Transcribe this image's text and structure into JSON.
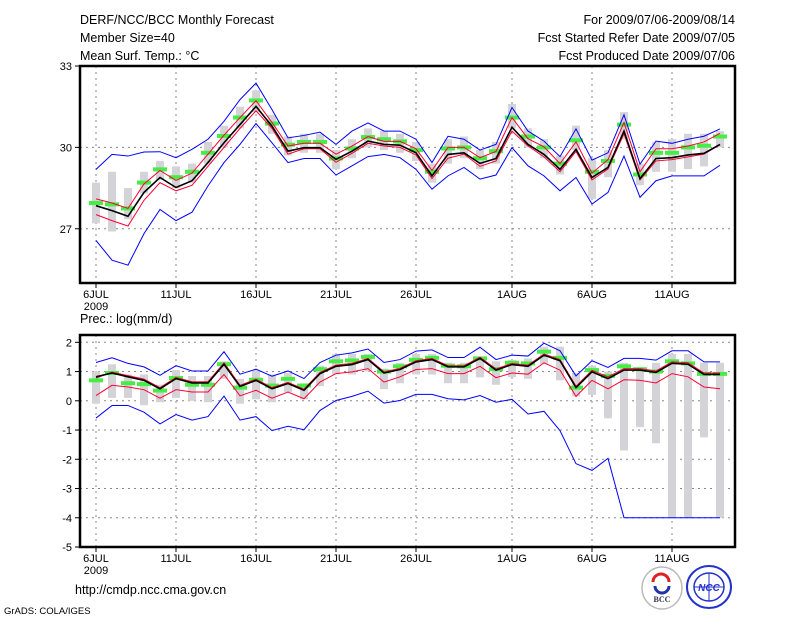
{
  "header": {
    "title": "DERF/NCC/BCC Monthly Forecast",
    "member_size": "Member Size=40",
    "variable": "Mean Surf. Temp.: °C",
    "period": "For 2009/07/06-2009/08/14",
    "started": "Fcst Started Refer Date 2009/07/05",
    "produced": "Fcst Produced Date 2009/07/06"
  },
  "footer": {
    "url": "http://cmdp.ncc.cma.gov.cn",
    "grads": "GrADS: COLA/IGES",
    "logo_bcc": "BCC",
    "logo_ncc": "NCC"
  },
  "colors": {
    "max_min": "#0000ff",
    "spread": "#ff0033",
    "mean": "#000000",
    "marker": "#44ee44",
    "bar": "#d4d4d8"
  },
  "chart_data": [
    {
      "type": "line",
      "title": "Mean Surf. Temp.: °C",
      "x_start": "2009-07-06",
      "n_days": 40,
      "x_tick_labels": [
        "6JUL",
        "11JUL",
        "16JUL",
        "21JUL",
        "26JUL",
        "1AUG",
        "6AUG",
        "11AUG"
      ],
      "x_tick_days": [
        0,
        5,
        10,
        15,
        20,
        26,
        31,
        36
      ],
      "year_label": "2009",
      "ylim": [
        25,
        33
      ],
      "y_ticks": [
        27,
        30,
        33
      ],
      "grid": true,
      "series": [
        {
          "name": "ensemble max",
          "color": "#0000ff",
          "values": [
            29.19,
            29.74,
            29.68,
            29.83,
            29.84,
            29.62,
            29.93,
            30.3,
            30.96,
            31.76,
            32.37,
            31.39,
            30.35,
            30.44,
            30.56,
            30.11,
            30.6,
            30.9,
            30.6,
            30.6,
            30.3,
            29.44,
            30.41,
            30.3,
            29.9,
            30.11,
            31.47,
            30.6,
            30.23,
            29.66,
            30.68,
            29.53,
            29.8,
            31.2,
            29.38,
            30.23,
            30.15,
            30.3,
            30.41,
            30.68
          ]
        },
        {
          "name": "ensemble min",
          "color": "#0000ff",
          "values": [
            26.57,
            25.84,
            25.66,
            26.82,
            27.71,
            27.3,
            27.61,
            28.58,
            29.44,
            30.11,
            30.88,
            30.17,
            29.44,
            29.59,
            29.59,
            28.98,
            29.32,
            29.66,
            29.74,
            29.62,
            29.19,
            28.46,
            28.95,
            29.26,
            28.83,
            28.98,
            29.99,
            29.32,
            28.95,
            28.4,
            28.89,
            27.91,
            28.34,
            29.68,
            28.16,
            28.77,
            28.95,
            28.95,
            28.95,
            29.34
          ]
        },
        {
          "name": "upper spread",
          "color": "#ff0033",
          "values": [
            28.1,
            27.95,
            27.75,
            28.65,
            29.15,
            28.78,
            29.05,
            29.75,
            30.45,
            31.1,
            31.72,
            30.92,
            30.05,
            30.15,
            30.15,
            29.75,
            30.05,
            30.4,
            30.22,
            30.22,
            29.95,
            29.15,
            30.0,
            30.0,
            29.62,
            29.85,
            31.1,
            30.32,
            30.02,
            29.4,
            30.2,
            29.05,
            29.55,
            30.92,
            29.1,
            29.95,
            29.95,
            30.05,
            30.2,
            30.52
          ]
        },
        {
          "name": "lower spread",
          "color": "#ff0033",
          "values": [
            27.52,
            27.3,
            27.1,
            28.05,
            28.7,
            28.4,
            28.6,
            29.3,
            30.0,
            30.7,
            31.35,
            30.7,
            29.75,
            29.95,
            29.95,
            29.45,
            29.78,
            30.15,
            30.05,
            30.0,
            29.72,
            28.85,
            29.6,
            29.75,
            29.3,
            29.5,
            30.6,
            30.05,
            29.65,
            29.1,
            29.85,
            28.8,
            29.2,
            30.5,
            28.8,
            29.5,
            29.55,
            29.65,
            29.75,
            30.1
          ]
        },
        {
          "name": "ensemble mean",
          "color": "#000000",
          "values": [
            27.85,
            27.67,
            27.46,
            28.34,
            28.89,
            28.52,
            28.77,
            29.44,
            30.17,
            30.84,
            31.51,
            30.78,
            29.86,
            29.99,
            29.99,
            29.56,
            29.86,
            30.23,
            30.11,
            30.08,
            29.8,
            28.95,
            29.74,
            29.8,
            29.41,
            29.59,
            30.74,
            30.11,
            29.74,
            29.19,
            29.93,
            28.89,
            29.26,
            30.6,
            28.85,
            29.59,
            29.62,
            29.72,
            29.78,
            30.11
          ]
        }
      ],
      "markers": [
        27.95,
        27.9,
        27.75,
        28.7,
        29.19,
        28.9,
        29.1,
        29.8,
        30.42,
        31.1,
        31.73,
        30.88,
        30.1,
        30.2,
        30.2,
        29.59,
        29.96,
        30.38,
        30.3,
        30.22,
        29.9,
        29.1,
        29.96,
        30.0,
        29.6,
        29.86,
        31.1,
        30.4,
        30.0,
        29.4,
        30.26,
        29.1,
        29.5,
        30.84,
        29.0,
        29.8,
        29.8,
        30.0,
        30.06,
        30.4
      ],
      "bars_low": [
        27.2,
        26.9,
        27.35,
        28.3,
        28.8,
        28.5,
        28.7,
        29.4,
        30.0,
        30.7,
        31.3,
        30.5,
        29.7,
        29.8,
        29.8,
        29.2,
        29.6,
        30.0,
        29.9,
        29.8,
        29.5,
        28.7,
        29.4,
        29.6,
        29.2,
        29.4,
        30.7,
        30.0,
        29.6,
        29.0,
        29.9,
        28.1,
        28.9,
        30.3,
        28.6,
        29.1,
        29.1,
        29.2,
        29.3,
        30.0
      ],
      "bars_high": [
        28.7,
        29.1,
        28.5,
        29.1,
        29.5,
        29.3,
        29.4,
        30.2,
        30.8,
        31.5,
        32.1,
        31.2,
        30.4,
        30.5,
        30.5,
        29.9,
        30.3,
        30.7,
        30.6,
        30.5,
        30.2,
        29.4,
        30.3,
        30.4,
        29.9,
        30.2,
        31.6,
        30.7,
        30.3,
        29.7,
        30.8,
        29.6,
        29.9,
        31.3,
        29.4,
        30.2,
        30.3,
        30.5,
        30.5,
        30.6
      ]
    },
    {
      "type": "line",
      "title": "Prec.: log(mm/d)",
      "x_start": "2009-07-06",
      "n_days": 40,
      "x_tick_labels": [
        "6JUL",
        "11JUL",
        "16JUL",
        "21JUL",
        "26JUL",
        "1AUG",
        "6AUG",
        "11AUG"
      ],
      "x_tick_days": [
        0,
        5,
        10,
        15,
        20,
        26,
        31,
        36
      ],
      "year_label": "2009",
      "ylim": [
        -5,
        2.25
      ],
      "y_ticks": [
        -5,
        -4,
        -3,
        -2,
        -1,
        0,
        1,
        2
      ],
      "grid": true,
      "series": [
        {
          "name": "ensemble max",
          "color": "#0000ff",
          "values": [
            1.31,
            1.47,
            1.28,
            1.16,
            0.87,
            1.2,
            1.02,
            1.02,
            1.68,
            0.91,
            1.08,
            0.84,
            1.02,
            0.76,
            1.31,
            1.56,
            1.64,
            1.77,
            1.31,
            1.41,
            1.7,
            1.74,
            1.48,
            1.48,
            1.83,
            1.41,
            1.56,
            1.53,
            1.97,
            1.71,
            0.85,
            1.37,
            1.14,
            1.45,
            1.45,
            1.39,
            1.71,
            1.71,
            1.33,
            1.33
          ]
        },
        {
          "name": "ensemble min",
          "color": "#0000ff",
          "values": [
            -0.59,
            -0.16,
            -0.16,
            -0.39,
            -0.79,
            -0.47,
            -0.66,
            -0.54,
            0.16,
            -0.66,
            -0.54,
            -1.02,
            -0.87,
            -0.99,
            -0.33,
            0.01,
            0.15,
            0.33,
            -0.08,
            0.01,
            0.22,
            0.22,
            0.07,
            0.03,
            0.18,
            -0.05,
            0.05,
            -0.45,
            -0.36,
            -1.02,
            -2.15,
            -2.38,
            -1.97,
            -4.0,
            -4.0,
            -4.0,
            -4.0,
            -4.0,
            -4.0,
            -4.0
          ]
        },
        {
          "name": "upper spread",
          "color": "#ff0033",
          "values": [
            0.78,
            0.98,
            0.86,
            0.74,
            0.45,
            0.8,
            0.65,
            0.65,
            1.3,
            0.53,
            0.74,
            0.45,
            0.63,
            0.4,
            0.97,
            1.22,
            1.28,
            1.45,
            0.99,
            1.11,
            1.37,
            1.45,
            1.2,
            1.2,
            1.49,
            1.09,
            1.28,
            1.22,
            1.6,
            1.41,
            0.5,
            1.04,
            0.82,
            1.1,
            1.1,
            1.02,
            1.33,
            1.3,
            0.95,
            0.95
          ]
        },
        {
          "name": "lower spread",
          "color": "#ff0033",
          "values": [
            0.18,
            0.53,
            0.47,
            0.38,
            0.09,
            0.38,
            0.3,
            0.3,
            0.9,
            0.17,
            0.36,
            0.09,
            0.3,
            0.07,
            0.64,
            0.93,
            0.99,
            1.1,
            0.64,
            0.82,
            1.07,
            1.1,
            0.93,
            0.93,
            1.18,
            0.79,
            0.95,
            0.91,
            1.3,
            1.05,
            0.15,
            0.7,
            0.41,
            0.72,
            0.7,
            0.61,
            0.93,
            0.82,
            0.47,
            0.41
          ]
        },
        {
          "name": "ensemble mean",
          "color": "#000000",
          "values": [
            0.82,
            0.95,
            0.82,
            0.7,
            0.41,
            0.76,
            0.61,
            0.61,
            1.25,
            0.49,
            0.7,
            0.41,
            0.59,
            0.36,
            0.93,
            1.18,
            1.24,
            1.41,
            0.95,
            1.07,
            1.33,
            1.41,
            1.16,
            1.16,
            1.45,
            1.05,
            1.24,
            1.18,
            1.56,
            1.37,
            0.45,
            0.99,
            0.76,
            1.05,
            1.05,
            0.97,
            1.28,
            1.25,
            0.9,
            0.9
          ]
        }
      ],
      "markers": [
        0.7,
        0.95,
        0.6,
        0.57,
        0.35,
        0.78,
        0.55,
        0.55,
        1.25,
        0.45,
        0.72,
        0.52,
        0.75,
        0.52,
        1.08,
        1.35,
        1.38,
        1.5,
        1.0,
        1.18,
        1.4,
        1.47,
        1.2,
        1.18,
        1.45,
        1.08,
        1.3,
        1.28,
        1.68,
        1.47,
        0.45,
        1.05,
        0.85,
        1.18,
        1.08,
        1.0,
        1.35,
        1.28,
        0.92,
        0.92
      ],
      "bars_low": [
        -0.1,
        0.1,
        0.1,
        -0.15,
        -0.05,
        0.1,
        0.0,
        -0.05,
        0.75,
        -0.1,
        0.05,
        -0.05,
        0.3,
        0.05,
        0.5,
        0.9,
        0.9,
        1.0,
        0.4,
        0.6,
        0.9,
        0.9,
        0.6,
        0.6,
        0.8,
        0.55,
        0.8,
        0.75,
        1.25,
        0.7,
        0.15,
        0.2,
        -0.6,
        -1.7,
        -0.9,
        -1.45,
        -4.0,
        -4.0,
        -1.25,
        -4.0
      ],
      "bars_high": [
        1.0,
        1.25,
        0.9,
        0.9,
        0.55,
        1.05,
        0.85,
        0.85,
        1.35,
        0.75,
        1.05,
        0.9,
        0.95,
        0.6,
        1.2,
        1.6,
        1.6,
        1.6,
        1.1,
        1.3,
        1.6,
        1.6,
        1.3,
        1.3,
        1.5,
        1.35,
        1.4,
        1.45,
        1.85,
        1.85,
        0.95,
        1.2,
        1.0,
        1.3,
        1.1,
        1.3,
        1.6,
        1.6,
        1.3,
        1.3
      ]
    }
  ]
}
